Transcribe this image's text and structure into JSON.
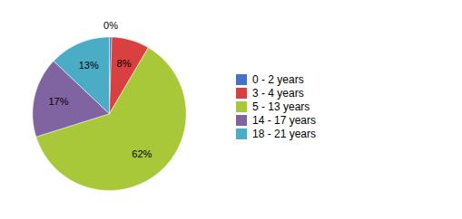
{
  "chart_data": {
    "type": "pie",
    "categories": [
      "0 - 2 years",
      "3 - 4 years",
      "5 - 13 years",
      "14 - 17 years",
      "18 - 21 years"
    ],
    "values": [
      0.5,
      8,
      62,
      17,
      13
    ],
    "value_labels": [
      "0%",
      "8%",
      "62%",
      "17%",
      "13%"
    ],
    "colors": [
      "#4472C4",
      "#D94040",
      "#A8C83A",
      "#8064A2",
      "#4BACC6"
    ],
    "data_labels": true,
    "legend": "right"
  }
}
